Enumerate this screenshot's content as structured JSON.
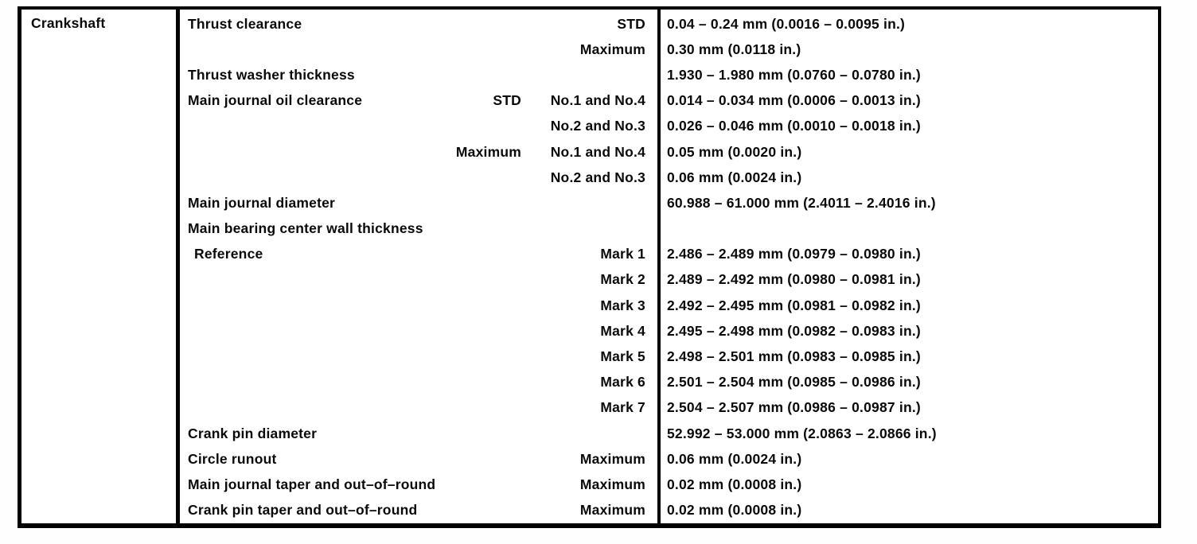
{
  "colors": {
    "background": "#fefefe",
    "table_border": "#000000",
    "text": "#0a0a0a"
  },
  "table": {
    "component": "Crankshaft",
    "rows": [
      {
        "name": "Thrust clearance",
        "q1": "",
        "q2": "STD",
        "value": "0.04 – 0.24 mm (0.0016 – 0.0095 in.)",
        "indent": false
      },
      {
        "name": "",
        "q1": "",
        "q2": "Maximum",
        "value": "0.30 mm (0.0118 in.)",
        "indent": false
      },
      {
        "name": "Thrust washer thickness",
        "q1": "",
        "q2": "",
        "value": "1.930 – 1.980 mm (0.0760 – 0.0780 in.)",
        "indent": false
      },
      {
        "name": "Main journal oil clearance",
        "q1": "STD",
        "q2": "No.1 and No.4",
        "value": "0.014 – 0.034 mm (0.0006 – 0.0013 in.)",
        "indent": false
      },
      {
        "name": "",
        "q1": "",
        "q2": "No.2 and No.3",
        "value": "0.026 – 0.046 mm (0.0010 – 0.0018 in.)",
        "indent": false
      },
      {
        "name": "",
        "q1": "Maximum",
        "q2": "No.1 and No.4",
        "value": "0.05 mm (0.0020 in.)",
        "indent": false
      },
      {
        "name": "",
        "q1": "",
        "q2": "No.2 and No.3",
        "value": "0.06 mm (0.0024 in.)",
        "indent": false
      },
      {
        "name": "Main journal diameter",
        "q1": "",
        "q2": "",
        "value": "60.988 – 61.000 mm (2.4011 – 2.4016 in.)",
        "indent": false
      },
      {
        "name": "Main bearing center wall thickness",
        "q1": "",
        "q2": "",
        "value": "",
        "indent": false
      },
      {
        "name": "Reference",
        "q1": "",
        "q2": "Mark 1",
        "value": "2.486 – 2.489 mm (0.0979 – 0.0980 in.)",
        "indent": true
      },
      {
        "name": "",
        "q1": "",
        "q2": "Mark 2",
        "value": "2.489 – 2.492 mm (0.0980 – 0.0981 in.)",
        "indent": false
      },
      {
        "name": "",
        "q1": "",
        "q2": "Mark 3",
        "value": "2.492 – 2.495 mm (0.0981 – 0.0982 in.)",
        "indent": false
      },
      {
        "name": "",
        "q1": "",
        "q2": "Mark 4",
        "value": "2.495 – 2.498 mm (0.0982 – 0.0983 in.)",
        "indent": false
      },
      {
        "name": "",
        "q1": "",
        "q2": "Mark 5",
        "value": "2.498 – 2.501 mm (0.0983 – 0.0985 in.)",
        "indent": false
      },
      {
        "name": "",
        "q1": "",
        "q2": "Mark 6",
        "value": "2.501 – 2.504 mm (0.0985 – 0.0986 in.)",
        "indent": false
      },
      {
        "name": "",
        "q1": "",
        "q2": "Mark 7",
        "value": "2.504 – 2.507 mm (0.0986 – 0.0987 in.)",
        "indent": false
      },
      {
        "name": "Crank pin diameter",
        "q1": "",
        "q2": "",
        "value": "52.992 – 53.000 mm (2.0863 – 2.0866 in.)",
        "indent": false
      },
      {
        "name": "Circle runout",
        "q1": "",
        "q2": "Maximum",
        "value": "0.06 mm (0.0024 in.)",
        "indent": false
      },
      {
        "name": "Main journal taper and out–of–round",
        "q1": "",
        "q2": "Maximum",
        "value": "0.02 mm (0.0008 in.)",
        "indent": false
      },
      {
        "name": "Crank pin taper and out–of–round",
        "q1": "",
        "q2": "Maximum",
        "value": "0.02 mm (0.0008 in.)",
        "indent": false
      }
    ]
  }
}
